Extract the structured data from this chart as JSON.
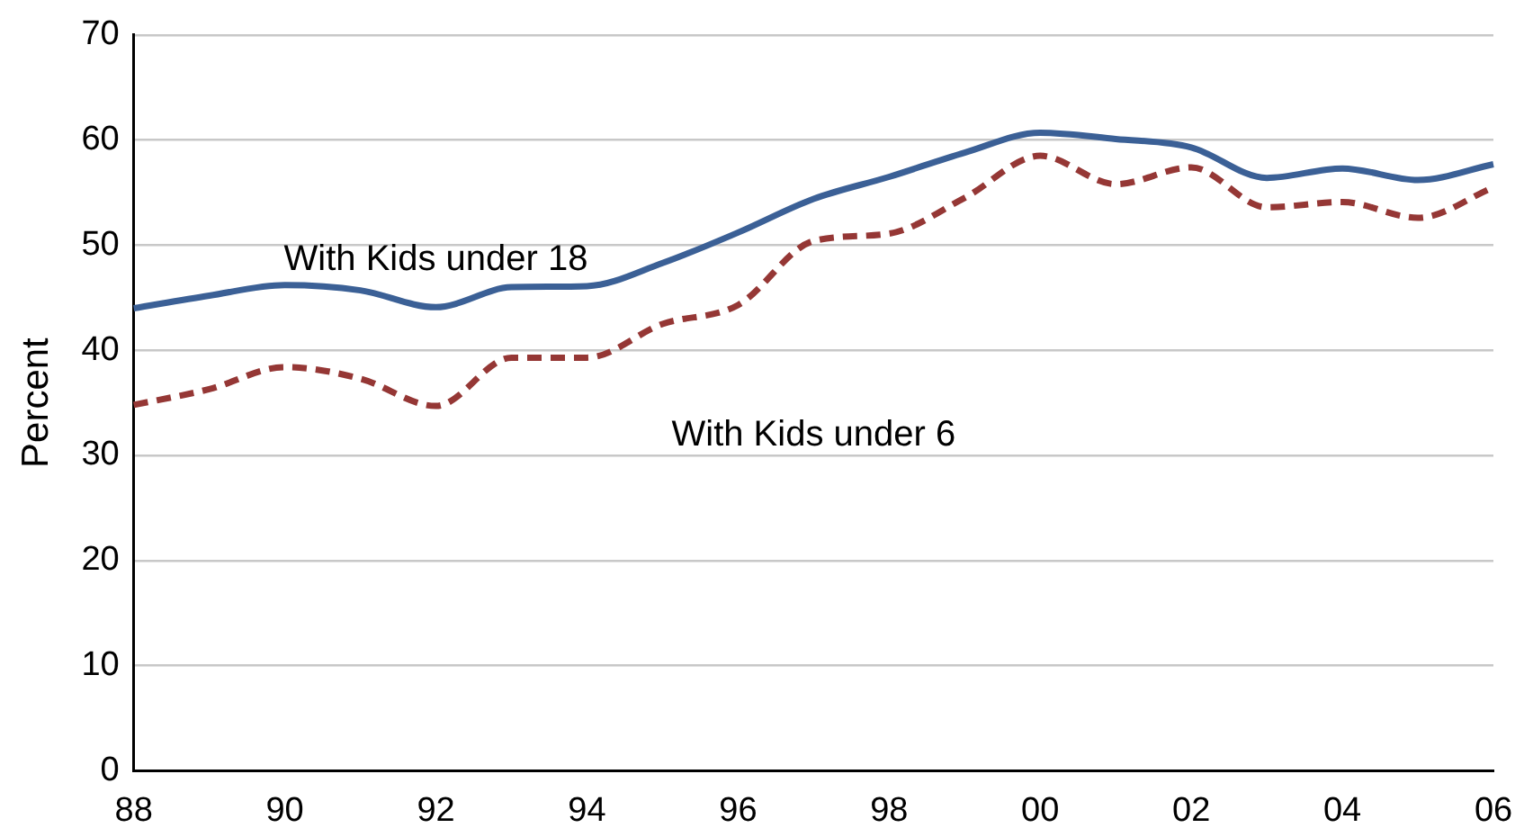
{
  "chart_data": {
    "type": "line",
    "ylabel": "Percent",
    "categories": [
      "88",
      null,
      "90",
      null,
      "92",
      null,
      "94",
      null,
      "96",
      null,
      "98",
      null,
      "00",
      null,
      "02",
      null,
      "04",
      null,
      "06"
    ],
    "ylim": [
      0,
      70
    ],
    "yticks": [
      0,
      10,
      20,
      30,
      40,
      50,
      60,
      70
    ],
    "grid": "y",
    "legend": false,
    "marker": "none",
    "series": [
      {
        "name": "With Kids under 18",
        "color": "#3b6096",
        "line_style": "solid",
        "values": [
          44,
          45.2,
          46.2,
          45.7,
          44.1,
          46,
          46.1,
          48.3,
          51.2,
          54.4,
          56.5,
          58.8,
          60.7,
          60.1,
          59.3,
          56.4,
          57.3,
          56.2,
          57.7
        ]
      },
      {
        "name": "With Kids under 6",
        "color": "#953735",
        "line_style": "dashed",
        "values": [
          34.8,
          36.3,
          38.4,
          37.3,
          34.7,
          39.3,
          39.3,
          42.5,
          44.3,
          50.4,
          51.1,
          54.5,
          58.5,
          55.8,
          57.4,
          53.6,
          54.1,
          52.6,
          55.5
        ]
      }
    ]
  }
}
